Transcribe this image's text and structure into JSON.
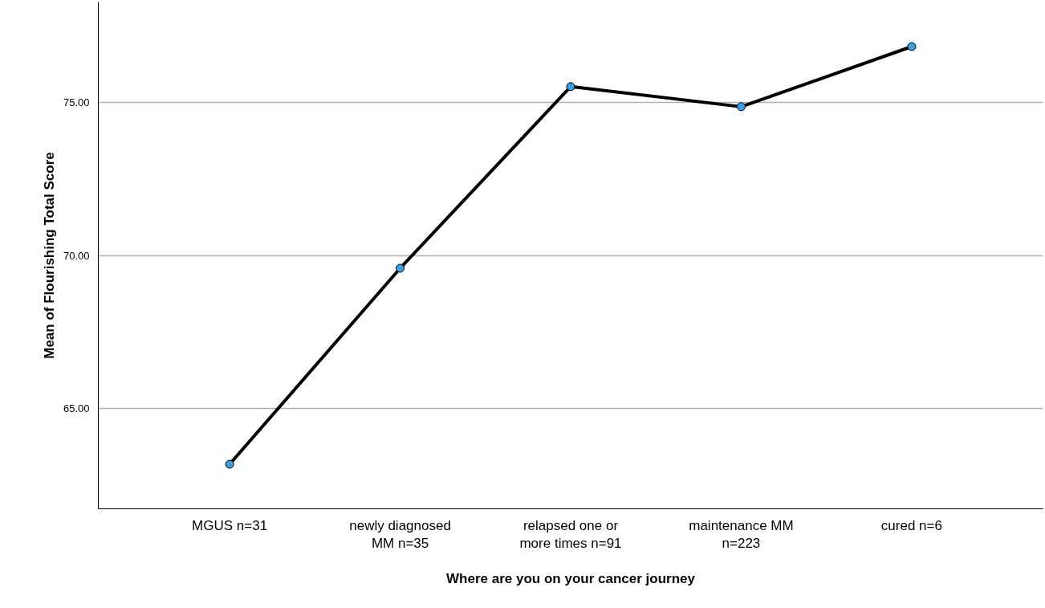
{
  "chart_data": {
    "type": "line",
    "xlabel": "Where are you on your cancer journey",
    "ylabel": "Mean of Flourishing Total Score",
    "categories": [
      "MGUS n=31",
      "newly diagnosed\nMM n=35",
      "relapsed one or\nmore times n=91",
      "maintenance MM\nn=223",
      "cured n=6"
    ],
    "series": [
      {
        "color": "#000000",
        "values": [
          63.16,
          69.58,
          75.53,
          74.87,
          76.84
        ]
      }
    ],
    "ylim": [
      61.7,
      78.3
    ],
    "yticks": [
      {
        "value": 65,
        "label": "65.00"
      },
      {
        "value": 70,
        "label": "70.00"
      },
      {
        "value": 75,
        "label": "75.00"
      }
    ],
    "grid": "y",
    "marker": "circle",
    "line_style": "solid"
  }
}
